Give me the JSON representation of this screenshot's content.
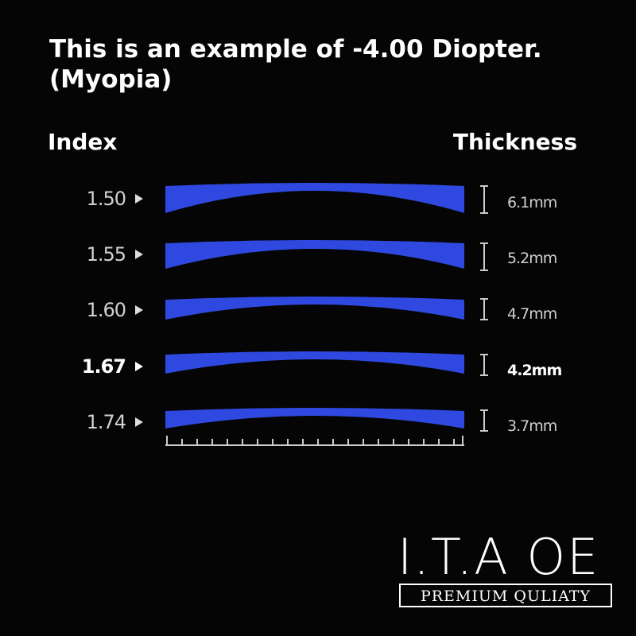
{
  "title_lines": [
    "This is an example of -4.00 Diopter.",
    "(Myopia)"
  ],
  "headers": {
    "index": "Index",
    "thickness": "Thickness"
  },
  "rows": [
    {
      "index": "1.50",
      "thickness": "6.1mm"
    },
    {
      "index": "1.55",
      "thickness": "5.2mm"
    },
    {
      "index": "1.60",
      "thickness": "4.7mm"
    },
    {
      "index": "1.67",
      "thickness": "4.2mm"
    },
    {
      "index": "1.74",
      "thickness": "3.7mm"
    }
  ],
  "logo": {
    "name": "I.T.A OE",
    "tagline": "PREMIUM QULIATY"
  }
}
